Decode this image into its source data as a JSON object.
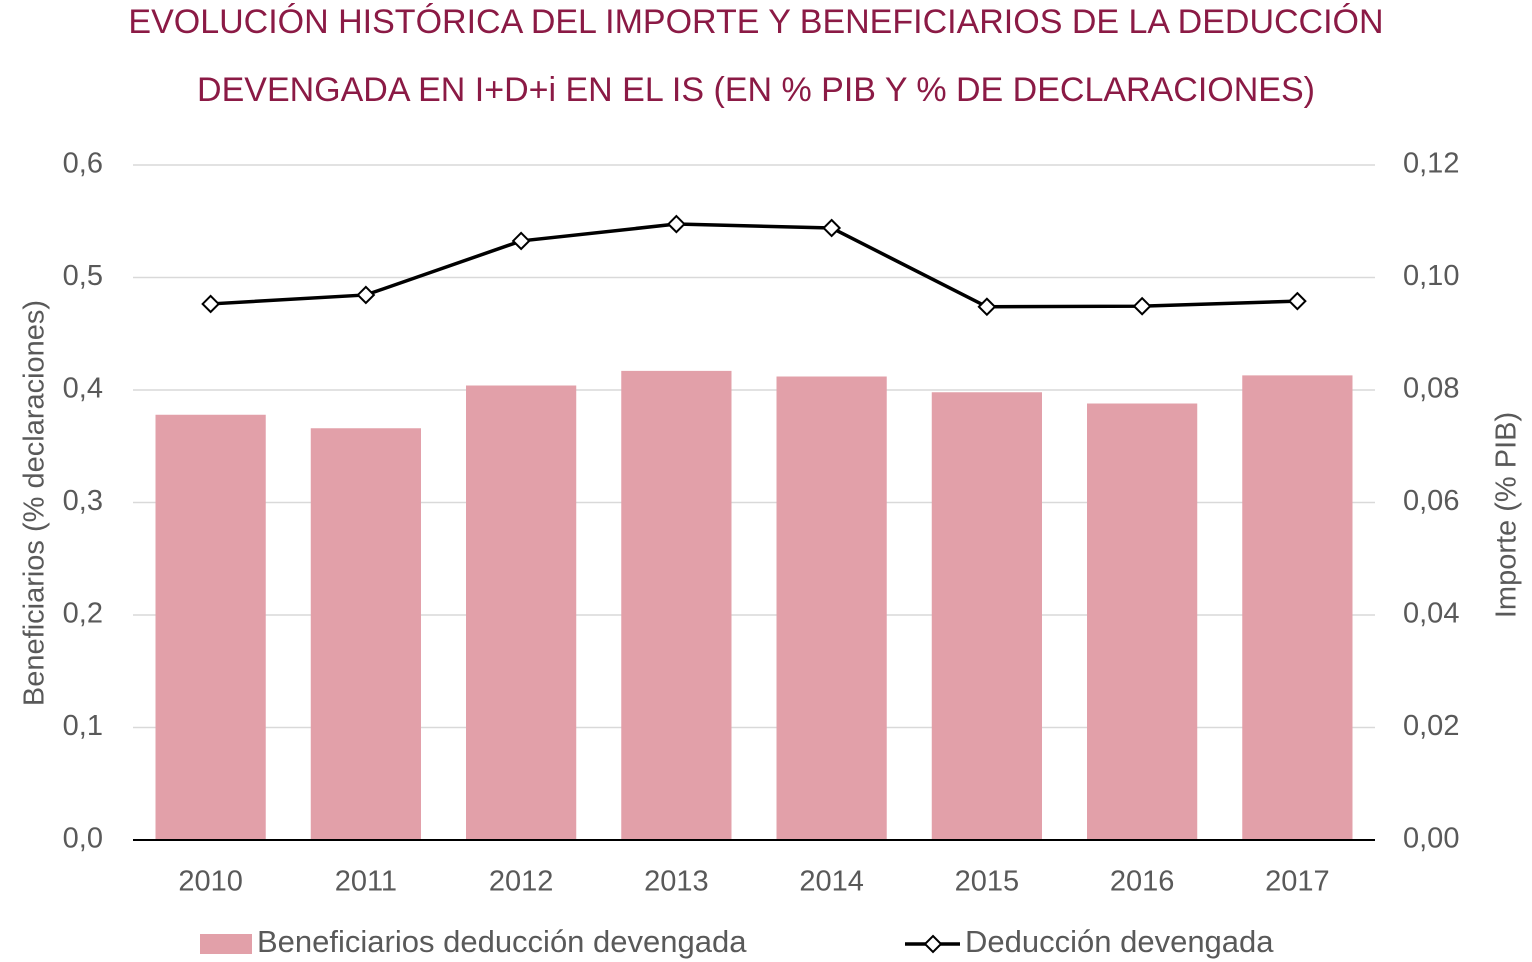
{
  "chart_data": {
    "type": "bar_line",
    "title": [
      "EVOLUCIÓN HISTÓRICA DEL IMPORTE Y BENEFICIARIOS DE LA DEDUCCIÓN",
      "DEVENGADA EN I+D+i EN EL IS (EN % PIB Y % DE DECLARACIONES)"
    ],
    "y_label": "Beneficiarios (% declaraciones)",
    "y2_label": "Importe (% PIB)",
    "categories": [
      "2010",
      "2011",
      "2012",
      "2013",
      "2014",
      "2015",
      "2016",
      "2017"
    ],
    "series": [
      {
        "name": "Beneficiarios deducción devengada",
        "type": "bar",
        "color": "#e2a0a9",
        "axis": "y",
        "values": [
          0.378,
          0.366,
          0.404,
          0.417,
          0.412,
          0.398,
          0.388,
          0.413
        ]
      },
      {
        "name": "Deducción devengada",
        "type": "line",
        "color": "#000000",
        "axis": "y2",
        "values": [
          0.0953,
          0.0969,
          0.1065,
          0.1095,
          0.1088,
          0.0948,
          0.0949,
          0.0958
        ]
      }
    ],
    "ylim": [
      0,
      0.6
    ],
    "yticks": [
      {
        "value": 0,
        "label": "0,0"
      },
      {
        "value": 0.1,
        "label": "0,1"
      },
      {
        "value": 0.2,
        "label": "0,2"
      },
      {
        "value": 0.3,
        "label": "0,3"
      },
      {
        "value": 0.4,
        "label": "0,4"
      },
      {
        "value": 0.5,
        "label": "0,5"
      },
      {
        "value": 0.6,
        "label": "0,6"
      }
    ],
    "y2lim": [
      0,
      0.12
    ],
    "y2ticks": [
      {
        "value": 0,
        "label": "0,00"
      },
      {
        "value": 0.02,
        "label": "0,02"
      },
      {
        "value": 0.04,
        "label": "0,04"
      },
      {
        "value": 0.06,
        "label": "0,06"
      },
      {
        "value": 0.08,
        "label": "0,08"
      },
      {
        "value": 0.1,
        "label": "0,10"
      },
      {
        "value": 0.12,
        "label": "0,12"
      }
    ],
    "grid": true,
    "legend": "bottom"
  }
}
